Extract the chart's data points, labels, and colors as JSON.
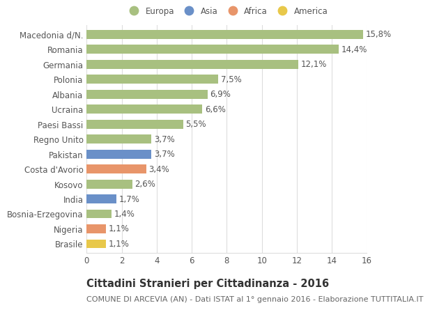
{
  "categories": [
    "Brasile",
    "Nigeria",
    "Bosnia-Erzegovina",
    "India",
    "Kosovo",
    "Costa d'Avorio",
    "Pakistan",
    "Regno Unito",
    "Paesi Bassi",
    "Ucraina",
    "Albania",
    "Polonia",
    "Germania",
    "Romania",
    "Macedonia d/N."
  ],
  "values": [
    1.1,
    1.1,
    1.4,
    1.7,
    2.6,
    3.4,
    3.7,
    3.7,
    5.5,
    6.6,
    6.9,
    7.5,
    12.1,
    14.4,
    15.8
  ],
  "labels": [
    "1,1%",
    "1,1%",
    "1,4%",
    "1,7%",
    "2,6%",
    "3,4%",
    "3,7%",
    "3,7%",
    "5,5%",
    "6,6%",
    "6,9%",
    "7,5%",
    "12,1%",
    "14,4%",
    "15,8%"
  ],
  "colors": [
    "#e8c84a",
    "#e8956a",
    "#a8c080",
    "#6a90c8",
    "#a8c080",
    "#e8956a",
    "#6a90c8",
    "#a8c080",
    "#a8c080",
    "#a8c080",
    "#a8c080",
    "#a8c080",
    "#a8c080",
    "#a8c080",
    "#a8c080"
  ],
  "legend_labels": [
    "Europa",
    "Asia",
    "Africa",
    "America"
  ],
  "legend_colors": [
    "#a8c080",
    "#6a90c8",
    "#e8956a",
    "#e8c84a"
  ],
  "title": "Cittadini Stranieri per Cittadinanza - 2016",
  "subtitle": "COMUNE DI ARCEVIA (AN) - Dati ISTAT al 1° gennaio 2016 - Elaborazione TUTTITALIA.IT",
  "xlim": [
    0,
    16
  ],
  "xticks": [
    0,
    2,
    4,
    6,
    8,
    10,
    12,
    14,
    16
  ],
  "bg_color": "#ffffff",
  "grid_color": "#dddddd",
  "bar_height": 0.6,
  "label_fontsize": 8.5,
  "tick_fontsize": 8.5,
  "title_fontsize": 10.5,
  "subtitle_fontsize": 8.0
}
